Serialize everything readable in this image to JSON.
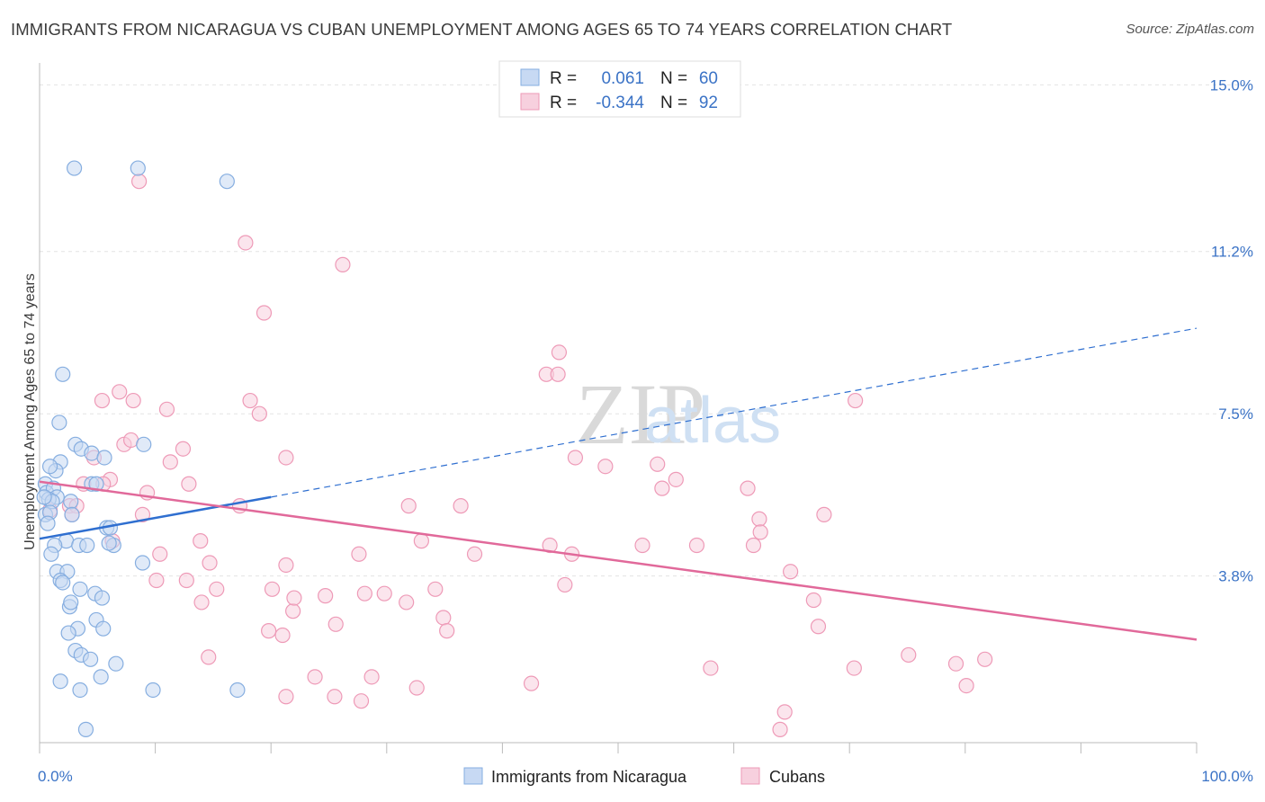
{
  "header": {
    "title": "IMMIGRANTS FROM NICARAGUA VS CUBAN UNEMPLOYMENT AMONG AGES 65 TO 74 YEARS CORRELATION CHART",
    "source": "Source: ZipAtlas.com"
  },
  "watermark": {
    "part1": "ZIP",
    "part2": "atlas"
  },
  "colors": {
    "blue_fill": "#c7d9f3",
    "blue_stroke": "#86aee0",
    "blue_line": "#2f6fd0",
    "pink_fill": "#f7d0de",
    "pink_stroke": "#ee9ab7",
    "pink_line": "#e1699a",
    "axis_label": "#3b73c6",
    "grid": "#e3e3e3"
  },
  "legend": {
    "rows": [
      {
        "r_label": "R =",
        "r_value": "0.061",
        "n_label": "N =",
        "n_value": "60"
      },
      {
        "r_label": "R =",
        "r_value": "-0.344",
        "n_label": "N =",
        "n_value": "92"
      }
    ]
  },
  "chart_data": {
    "type": "scatter",
    "title": "IMMIGRANTS FROM NICARAGUA VS CUBAN UNEMPLOYMENT AMONG AGES 65 TO 74 YEARS CORRELATION CHART",
    "xlabel": "",
    "ylabel": "Unemployment Among Ages 65 to 74 years",
    "xlim": [
      0,
      100
    ],
    "ylim": [
      0,
      15.5
    ],
    "x_tick_labels": [
      "0.0%",
      "100.0%"
    ],
    "y_ticks": [
      {
        "value": 3.8,
        "label": "3.8%"
      },
      {
        "value": 7.5,
        "label": "7.5%"
      },
      {
        "value": 11.2,
        "label": "11.2%"
      },
      {
        "value": 15.0,
        "label": "15.0%"
      }
    ],
    "grid": true,
    "series": [
      {
        "name": "Immigrants from Nicaragua",
        "color": "blue",
        "r": 0.061,
        "n": 60,
        "trend": {
          "x": [
            0,
            20
          ],
          "y": [
            4.65,
            5.6
          ],
          "extended_x": [
            20,
            100
          ],
          "extended_y": [
            5.6,
            9.45
          ]
        },
        "points": [
          [
            3.0,
            13.1
          ],
          [
            8.5,
            13.1
          ],
          [
            16.2,
            12.8
          ],
          [
            2.0,
            8.4
          ],
          [
            1.7,
            7.3
          ],
          [
            3.1,
            6.8
          ],
          [
            3.6,
            6.7
          ],
          [
            4.5,
            6.6
          ],
          [
            5.6,
            6.5
          ],
          [
            9.0,
            6.8
          ],
          [
            1.8,
            6.4
          ],
          [
            1.4,
            6.2
          ],
          [
            0.9,
            6.3
          ],
          [
            0.5,
            5.9
          ],
          [
            0.6,
            5.7
          ],
          [
            1.2,
            5.8
          ],
          [
            1.5,
            5.6
          ],
          [
            0.8,
            5.55
          ],
          [
            1.1,
            5.5
          ],
          [
            2.7,
            5.5
          ],
          [
            4.5,
            5.9
          ],
          [
            4.9,
            5.9
          ],
          [
            0.5,
            5.2
          ],
          [
            0.9,
            5.25
          ],
          [
            2.8,
            5.2
          ],
          [
            5.8,
            4.9
          ],
          [
            6.1,
            4.9
          ],
          [
            2.3,
            4.6
          ],
          [
            1.3,
            4.5
          ],
          [
            3.4,
            4.5
          ],
          [
            4.1,
            4.5
          ],
          [
            6.4,
            4.5
          ],
          [
            1.0,
            4.3
          ],
          [
            8.9,
            4.1
          ],
          [
            1.5,
            3.9
          ],
          [
            2.4,
            3.9
          ],
          [
            1.8,
            3.7
          ],
          [
            2.0,
            3.65
          ],
          [
            3.5,
            3.5
          ],
          [
            4.8,
            3.4
          ],
          [
            5.4,
            3.3
          ],
          [
            2.6,
            3.1
          ],
          [
            2.7,
            3.2
          ],
          [
            4.9,
            2.8
          ],
          [
            5.5,
            2.6
          ],
          [
            3.3,
            2.6
          ],
          [
            2.5,
            2.5
          ],
          [
            3.1,
            2.1
          ],
          [
            3.6,
            2.0
          ],
          [
            4.4,
            1.9
          ],
          [
            6.6,
            1.8
          ],
          [
            1.8,
            1.4
          ],
          [
            5.3,
            1.5
          ],
          [
            3.5,
            1.2
          ],
          [
            9.8,
            1.2
          ],
          [
            17.1,
            1.2
          ],
          [
            4.0,
            0.3
          ],
          [
            0.4,
            5.6
          ],
          [
            0.7,
            5.0
          ],
          [
            6.0,
            4.55
          ]
        ]
      },
      {
        "name": "Cubans",
        "color": "pink",
        "r": -0.344,
        "n": 92,
        "trend": {
          "x": [
            0,
            100
          ],
          "y": [
            5.95,
            2.35
          ]
        },
        "points": [
          [
            8.6,
            12.8
          ],
          [
            17.8,
            11.4
          ],
          [
            26.2,
            10.9
          ],
          [
            19.4,
            9.8
          ],
          [
            44.9,
            8.9
          ],
          [
            43.8,
            8.4
          ],
          [
            44.8,
            8.4
          ],
          [
            6.9,
            8.0
          ],
          [
            5.4,
            7.8
          ],
          [
            8.1,
            7.8
          ],
          [
            18.2,
            7.8
          ],
          [
            11.0,
            7.6
          ],
          [
            19.0,
            7.5
          ],
          [
            70.5,
            7.8
          ],
          [
            7.3,
            6.8
          ],
          [
            7.9,
            6.9
          ],
          [
            12.4,
            6.7
          ],
          [
            21.3,
            6.5
          ],
          [
            11.3,
            6.4
          ],
          [
            4.7,
            6.5
          ],
          [
            6.1,
            6.0
          ],
          [
            5.5,
            5.9
          ],
          [
            3.8,
            5.9
          ],
          [
            12.9,
            5.9
          ],
          [
            46.3,
            6.5
          ],
          [
            48.9,
            6.3
          ],
          [
            53.4,
            6.35
          ],
          [
            55.0,
            6.0
          ],
          [
            53.8,
            5.8
          ],
          [
            61.2,
            5.8
          ],
          [
            9.3,
            5.7
          ],
          [
            17.3,
            5.4
          ],
          [
            2.6,
            5.4
          ],
          [
            3.2,
            5.4
          ],
          [
            0.9,
            5.3
          ],
          [
            2.8,
            5.2
          ],
          [
            8.9,
            5.2
          ],
          [
            31.9,
            5.4
          ],
          [
            36.4,
            5.4
          ],
          [
            62.2,
            5.1
          ],
          [
            67.8,
            5.2
          ],
          [
            62.3,
            4.8
          ],
          [
            13.9,
            4.6
          ],
          [
            6.3,
            4.6
          ],
          [
            10.4,
            4.3
          ],
          [
            33.0,
            4.6
          ],
          [
            44.1,
            4.5
          ],
          [
            52.1,
            4.5
          ],
          [
            56.8,
            4.5
          ],
          [
            61.7,
            4.5
          ],
          [
            14.7,
            4.1
          ],
          [
            21.3,
            4.05
          ],
          [
            27.6,
            4.3
          ],
          [
            37.6,
            4.3
          ],
          [
            46.0,
            4.3
          ],
          [
            12.7,
            3.7
          ],
          [
            10.1,
            3.7
          ],
          [
            15.3,
            3.5
          ],
          [
            20.1,
            3.5
          ],
          [
            24.7,
            3.35
          ],
          [
            28.1,
            3.4
          ],
          [
            29.8,
            3.4
          ],
          [
            34.2,
            3.5
          ],
          [
            45.4,
            3.6
          ],
          [
            64.9,
            3.9
          ],
          [
            14.0,
            3.2
          ],
          [
            21.9,
            3.0
          ],
          [
            31.7,
            3.2
          ],
          [
            34.9,
            2.85
          ],
          [
            25.6,
            2.7
          ],
          [
            19.8,
            2.55
          ],
          [
            21.0,
            2.45
          ],
          [
            35.2,
            2.55
          ],
          [
            66.9,
            3.25
          ],
          [
            67.3,
            2.65
          ],
          [
            14.6,
            1.95
          ],
          [
            23.8,
            1.5
          ],
          [
            28.7,
            1.5
          ],
          [
            21.3,
            1.05
          ],
          [
            25.5,
            1.05
          ],
          [
            27.8,
            0.95
          ],
          [
            32.6,
            1.25
          ],
          [
            42.5,
            1.35
          ],
          [
            58.0,
            1.7
          ],
          [
            70.4,
            1.7
          ],
          [
            75.1,
            2.0
          ],
          [
            79.2,
            1.8
          ],
          [
            81.7,
            1.9
          ],
          [
            80.1,
            1.3
          ],
          [
            64.4,
            0.7
          ],
          [
            64.0,
            0.3
          ],
          [
            22.0,
            3.3
          ]
        ]
      }
    ],
    "legend_entries": [
      "Immigrants from Nicaragua",
      "Cubans"
    ]
  }
}
